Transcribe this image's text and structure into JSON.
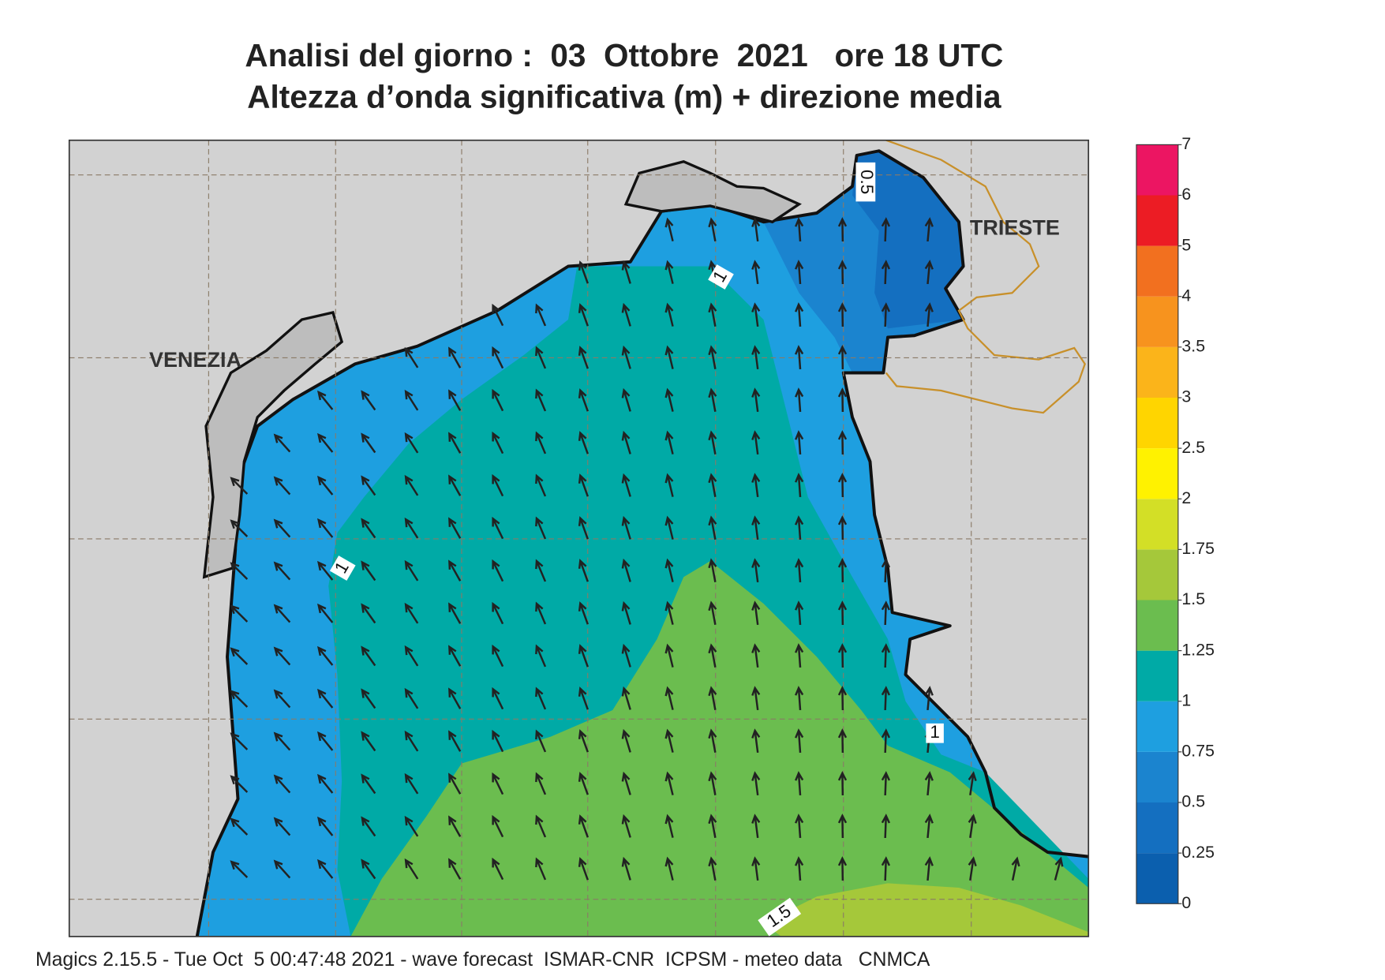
{
  "title": "Analisi del giorno :  03  Ottobre  2021   ore 18 UTC",
  "subtitle": "Altezza d’onda significativa (m) + direzione media",
  "map": {
    "places": [
      "VENEZIA",
      "TRIESTE"
    ],
    "contour_labels": [
      "0.5",
      "1",
      "1",
      "1",
      "1.5"
    ]
  },
  "colorbar": {
    "levels": [
      0,
      0.25,
      0.5,
      0.75,
      1,
      1.25,
      1.5,
      1.75,
      2,
      2.5,
      3,
      3.5,
      4,
      5,
      6,
      7
    ],
    "colors": [
      "#0b5fae",
      "#146fc0",
      "#1b84cf",
      "#1e9fe0",
      "#00aaa6",
      "#6bbd4f",
      "#a5c83a",
      "#d3df26",
      "#fff200",
      "#ffd500",
      "#fbb41a",
      "#f7931e",
      "#f2701f",
      "#ec1c24",
      "#ec1562"
    ]
  },
  "footer": "Magics 2.15.5 - Tue Oct  5 00:47:48 2021 - wave forecast  ISMAR-CNR  ICPSM - meteo data   CNMCA"
}
